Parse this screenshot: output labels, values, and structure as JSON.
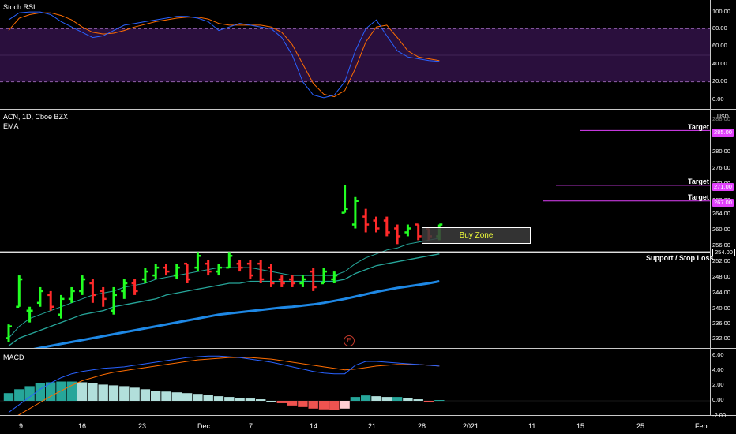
{
  "stoch": {
    "title": "Stoch RSI",
    "ticks": [
      "100.00",
      "80.00",
      "60.00",
      "40.00",
      "20.00",
      "0.00"
    ],
    "band": {
      "upper": 80,
      "lower": 20
    },
    "colors": {
      "k": "#2962ff",
      "d": "#ff6d00",
      "band": "#2a0f3d"
    }
  },
  "price": {
    "title": "ACN, 1D, Cboe BZX",
    "indicator": "EMA",
    "currency": "USD",
    "ticks": [
      "288.00",
      "284.00",
      "280.00",
      "276.00",
      "272.00",
      "268.00",
      "264.00",
      "260.00",
      "256.00",
      "252.00",
      "248.00",
      "244.00",
      "240.00",
      "236.00",
      "232.00"
    ],
    "targets": [
      {
        "label": "Target",
        "value": "285.00"
      },
      {
        "label": "Target",
        "value": "271.00"
      },
      {
        "label": "Target",
        "value": "267.00"
      }
    ],
    "support": {
      "label": "Support / Stop Loss",
      "value": "254.00"
    },
    "buy_zone": {
      "label": "Buy Zone"
    },
    "earnings_marker": "E",
    "colors": {
      "up": "#22ff22",
      "down": "#ff2a2a",
      "target": "#e040fb",
      "ema_fast": "#26a69a",
      "ema_slow": "#1e88e5"
    }
  },
  "macd": {
    "title": "MACD",
    "ticks": [
      "6.00",
      "4.00",
      "2.00",
      "0.00",
      "-2.00"
    ]
  },
  "time_axis": {
    "labels": [
      "9",
      "16",
      "23",
      "Dec",
      "7",
      "14",
      "21",
      "28",
      "2021",
      "11",
      "15",
      "25",
      "Feb"
    ]
  },
  "chart_data": {
    "type": "candlestick",
    "title": "ACN, 1D, Cboe BZX",
    "candles": [
      {
        "o": 232.0,
        "h": 235.5,
        "l": 231.0,
        "c": 235.0
      },
      {
        "o": 240.0,
        "h": 248.0,
        "l": 240.0,
        "c": 247.0
      },
      {
        "o": 239.0,
        "h": 240.0,
        "l": 236.0,
        "c": 239.0
      },
      {
        "o": 241.0,
        "h": 245.0,
        "l": 240.0,
        "c": 244.0
      },
      {
        "o": 243.0,
        "h": 244.0,
        "l": 239.0,
        "c": 240.0
      },
      {
        "o": 238.0,
        "h": 243.0,
        "l": 237.0,
        "c": 242.0
      },
      {
        "o": 242.0,
        "h": 245.0,
        "l": 241.0,
        "c": 244.0
      },
      {
        "o": 244.0,
        "h": 248.0,
        "l": 243.0,
        "c": 247.0
      },
      {
        "o": 246.0,
        "h": 247.0,
        "l": 241.0,
        "c": 243.0
      },
      {
        "o": 244.0,
        "h": 245.0,
        "l": 240.0,
        "c": 242.0
      },
      {
        "o": 239.0,
        "h": 245.0,
        "l": 238.0,
        "c": 243.0
      },
      {
        "o": 244.0,
        "h": 247.0,
        "l": 242.0,
        "c": 246.0
      },
      {
        "o": 246.0,
        "h": 247.0,
        "l": 243.0,
        "c": 244.0
      },
      {
        "o": 247.0,
        "h": 250.0,
        "l": 246.0,
        "c": 249.0
      },
      {
        "o": 248.0,
        "h": 251.0,
        "l": 247.0,
        "c": 250.0
      },
      {
        "o": 250.0,
        "h": 251.0,
        "l": 248.0,
        "c": 249.0
      },
      {
        "o": 248.0,
        "h": 251.0,
        "l": 247.0,
        "c": 250.0
      },
      {
        "o": 251.0,
        "h": 251.0,
        "l": 246.0,
        "c": 247.0
      },
      {
        "o": 250.0,
        "h": 254.0,
        "l": 249.0,
        "c": 253.0
      },
      {
        "o": 251.0,
        "h": 252.0,
        "l": 248.0,
        "c": 249.0
      },
      {
        "o": 249.0,
        "h": 251.0,
        "l": 248.0,
        "c": 250.0
      },
      {
        "o": 250.0,
        "h": 254.0,
        "l": 250.0,
        "c": 253.0
      },
      {
        "o": 251.0,
        "h": 252.0,
        "l": 249.0,
        "c": 250.0
      },
      {
        "o": 251.0,
        "h": 252.0,
        "l": 247.0,
        "c": 248.0
      },
      {
        "o": 251.0,
        "h": 252.0,
        "l": 246.0,
        "c": 247.0
      },
      {
        "o": 250.0,
        "h": 251.0,
        "l": 245.0,
        "c": 246.0
      },
      {
        "o": 247.0,
        "h": 248.0,
        "l": 245.0,
        "c": 246.0
      },
      {
        "o": 247.0,
        "h": 248.0,
        "l": 245.0,
        "c": 246.0
      },
      {
        "o": 246.0,
        "h": 248.0,
        "l": 245.0,
        "c": 247.0
      },
      {
        "o": 249.0,
        "h": 250.0,
        "l": 244.0,
        "c": 245.0
      },
      {
        "o": 246.0,
        "h": 250.0,
        "l": 246.0,
        "c": 249.0
      },
      {
        "o": 247.0,
        "h": 249.0,
        "l": 246.0,
        "c": 248.0
      },
      {
        "o": 264.0,
        "h": 271.0,
        "l": 264.0,
        "c": 265.0
      },
      {
        "o": 261.0,
        "h": 268.0,
        "l": 260.0,
        "c": 267.0
      },
      {
        "o": 263.0,
        "h": 265.0,
        "l": 259.0,
        "c": 261.0
      },
      {
        "o": 262.0,
        "h": 263.0,
        "l": 259.0,
        "c": 260.0
      },
      {
        "o": 262.0,
        "h": 263.0,
        "l": 258.0,
        "c": 259.0
      },
      {
        "o": 260.0,
        "h": 261.0,
        "l": 256.0,
        "c": 258.0
      },
      {
        "o": 259.0,
        "h": 261.0,
        "l": 258.0,
        "c": 260.0
      },
      {
        "o": 261.0,
        "h": 261.0,
        "l": 257.0,
        "c": 258.0
      },
      {
        "o": 260.0,
        "h": 260.0,
        "l": 257.0,
        "c": 258.0
      },
      {
        "o": 258.0,
        "h": 261.0,
        "l": 257.0,
        "c": 261.0
      }
    ],
    "ema_fast": [
      232,
      235,
      237,
      238,
      239,
      240,
      241,
      242,
      243,
      243.5,
      244,
      245,
      245.5,
      246,
      247,
      247.5,
      248,
      248.5,
      249,
      249.5,
      250,
      250,
      250,
      250,
      249.5,
      249,
      248.5,
      248,
      248,
      248,
      248,
      248,
      249,
      251,
      252.5,
      253.5,
      254.5,
      255,
      256,
      256.5,
      257,
      257.5
    ],
    "ema_mid": [
      230,
      232,
      233,
      234,
      235,
      236,
      237,
      238,
      238.5,
      239,
      240,
      240.5,
      241,
      241.5,
      242,
      243,
      243.5,
      244,
      244.5,
      245,
      245.5,
      246,
      246,
      246.5,
      246.5,
      246.5,
      246.5,
      246.5,
      246.5,
      246.5,
      246.5,
      246.5,
      247,
      248.5,
      249.5,
      250.5,
      251,
      251.5,
      252,
      252.5,
      253,
      253.5
    ],
    "ema_slow": [
      228,
      228.5,
      229,
      229.5,
      230,
      230.5,
      231,
      231.5,
      232,
      232.5,
      233,
      233.5,
      234,
      234.5,
      235,
      235.5,
      236,
      236.5,
      237,
      237.5,
      238,
      238.3,
      238.6,
      238.9,
      239.2,
      239.5,
      239.8,
      240,
      240.3,
      240.6,
      241,
      241.5,
      242,
      242.6,
      243.2,
      243.8,
      244.3,
      244.8,
      245.2,
      245.6,
      246,
      246.5
    ],
    "stoch_k": [
      90,
      98,
      99,
      99,
      96,
      88,
      82,
      76,
      70,
      72,
      78,
      84,
      86,
      88,
      90,
      92,
      94,
      94,
      92,
      88,
      78,
      82,
      86,
      84,
      82,
      80,
      70,
      50,
      20,
      5,
      2,
      5,
      20,
      55,
      80,
      90,
      72,
      55,
      48,
      46,
      44,
      43
    ],
    "stoch_d": [
      78,
      92,
      96,
      98,
      98,
      95,
      90,
      82,
      76,
      74,
      75,
      78,
      82,
      85,
      88,
      90,
      92,
      93,
      93,
      91,
      86,
      84,
      84,
      84,
      84,
      82,
      76,
      62,
      40,
      18,
      6,
      3,
      10,
      35,
      65,
      82,
      84,
      70,
      55,
      48,
      46,
      44
    ],
    "macd_hist": [
      1.0,
      1.5,
      1.9,
      2.3,
      2.4,
      2.5,
      2.5,
      2.4,
      2.3,
      2.1,
      2.0,
      1.9,
      1.7,
      1.5,
      1.3,
      1.2,
      1.1,
      1.0,
      0.9,
      0.8,
      0.6,
      0.5,
      0.4,
      0.3,
      0.2,
      0.0,
      -0.3,
      -0.6,
      -0.8,
      -1.0,
      -1.1,
      -1.2,
      -1.0,
      0.5,
      0.7,
      0.6,
      0.5,
      0.5,
      0.4,
      0.2,
      -0.1,
      0.1
    ],
    "macd_line": [
      -1.5,
      -0.5,
      0.5,
      1.5,
      2.3,
      3.0,
      3.5,
      3.8,
      4.0,
      4.2,
      4.3,
      4.4,
      4.6,
      4.8,
      5.0,
      5.2,
      5.4,
      5.6,
      5.7,
      5.8,
      5.8,
      5.7,
      5.6,
      5.4,
      5.2,
      5.0,
      4.7,
      4.4,
      4.1,
      3.8,
      3.6,
      3.5,
      3.5,
      4.6,
      5.1,
      5.1,
      5.0,
      4.9,
      4.8,
      4.7,
      4.6,
      4.5
    ],
    "signal_line": [
      -2.5,
      -1.8,
      -1.0,
      -0.2,
      0.6,
      1.3,
      2.0,
      2.6,
      3.0,
      3.4,
      3.7,
      3.9,
      4.1,
      4.3,
      4.5,
      4.7,
      4.9,
      5.1,
      5.3,
      5.4,
      5.5,
      5.6,
      5.6,
      5.6,
      5.5,
      5.4,
      5.2,
      5.0,
      4.8,
      4.6,
      4.4,
      4.2,
      4.0,
      4.1,
      4.3,
      4.5,
      4.6,
      4.7,
      4.7,
      4.7,
      4.6,
      4.5
    ]
  }
}
